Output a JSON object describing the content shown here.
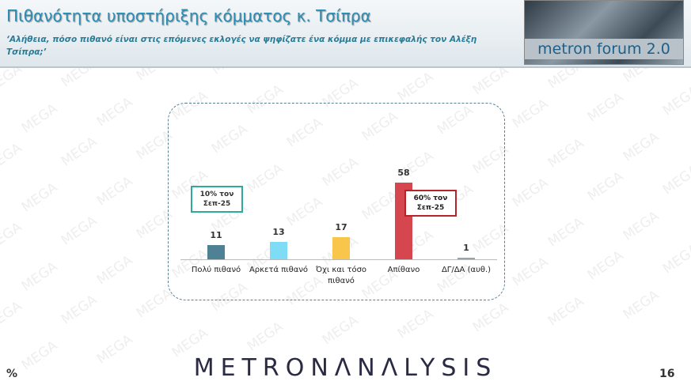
{
  "header": {
    "title": "Πιθανότητα υποστήριξης κόμματος κ. Τσίπρα",
    "subtitle": "‘Αλήθεια, πόσο πιθανό είναι στις επόμενες εκλογές να ψηφίζατε ένα κόμμα με επικεφαλής τον Αλέξη Τσίπρα;’",
    "logo": "metron forum 2.0"
  },
  "chart_data": {
    "type": "bar",
    "categories": [
      "Πολύ πιθανό",
      "Αρκετά πιθανό",
      "Όχι και τόσο πιθανό",
      "Απίθανο",
      "ΔΓ/ΔΑ (αυθ.)"
    ],
    "values": [
      11,
      13,
      17,
      58,
      1
    ],
    "colors": [
      "#4e8193",
      "#7fdcf6",
      "#f8c64a",
      "#d5464f",
      "#9aa3a8"
    ],
    "annotations": [
      {
        "text": "10% τον Σεπ-25",
        "color": "#2fa99a"
      },
      {
        "text": "60% τον Σεπ-25",
        "color": "#b4242c"
      }
    ]
  },
  "footer": {
    "unit": "%",
    "brand": "METRONΛNΛLYSIS",
    "page": "16"
  },
  "watermark": "MEGA"
}
